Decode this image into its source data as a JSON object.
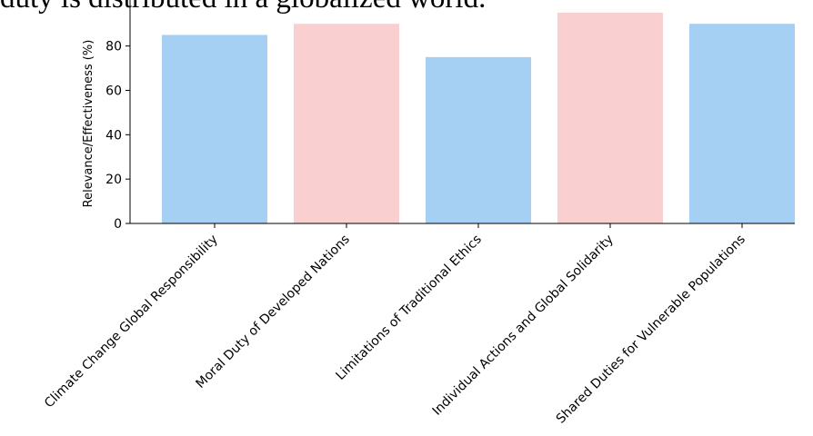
{
  "page": {
    "title_fragment": "duty is distributed in a globalized world."
  },
  "chart_data": {
    "type": "bar",
    "categories": [
      "Climate Change Global Responsibility",
      "Moral Duty of Developed Nations",
      "Limitations of Traditional Ethics",
      "Individual Actions and Global Solidarity",
      "Shared Duties for Vulnerable Populations"
    ],
    "values": [
      85,
      90,
      75,
      95,
      90
    ],
    "bar_colors": [
      "#a5cff3",
      "#f9cfd0",
      "#a5cff3",
      "#f9cfd0",
      "#a5cff3"
    ],
    "ylabel": "Relevance/Effectiveness (%)",
    "ylim": [
      0,
      95
    ],
    "yticks": [
      0,
      20,
      40,
      60,
      80
    ],
    "grid": false,
    "legend": "none"
  }
}
